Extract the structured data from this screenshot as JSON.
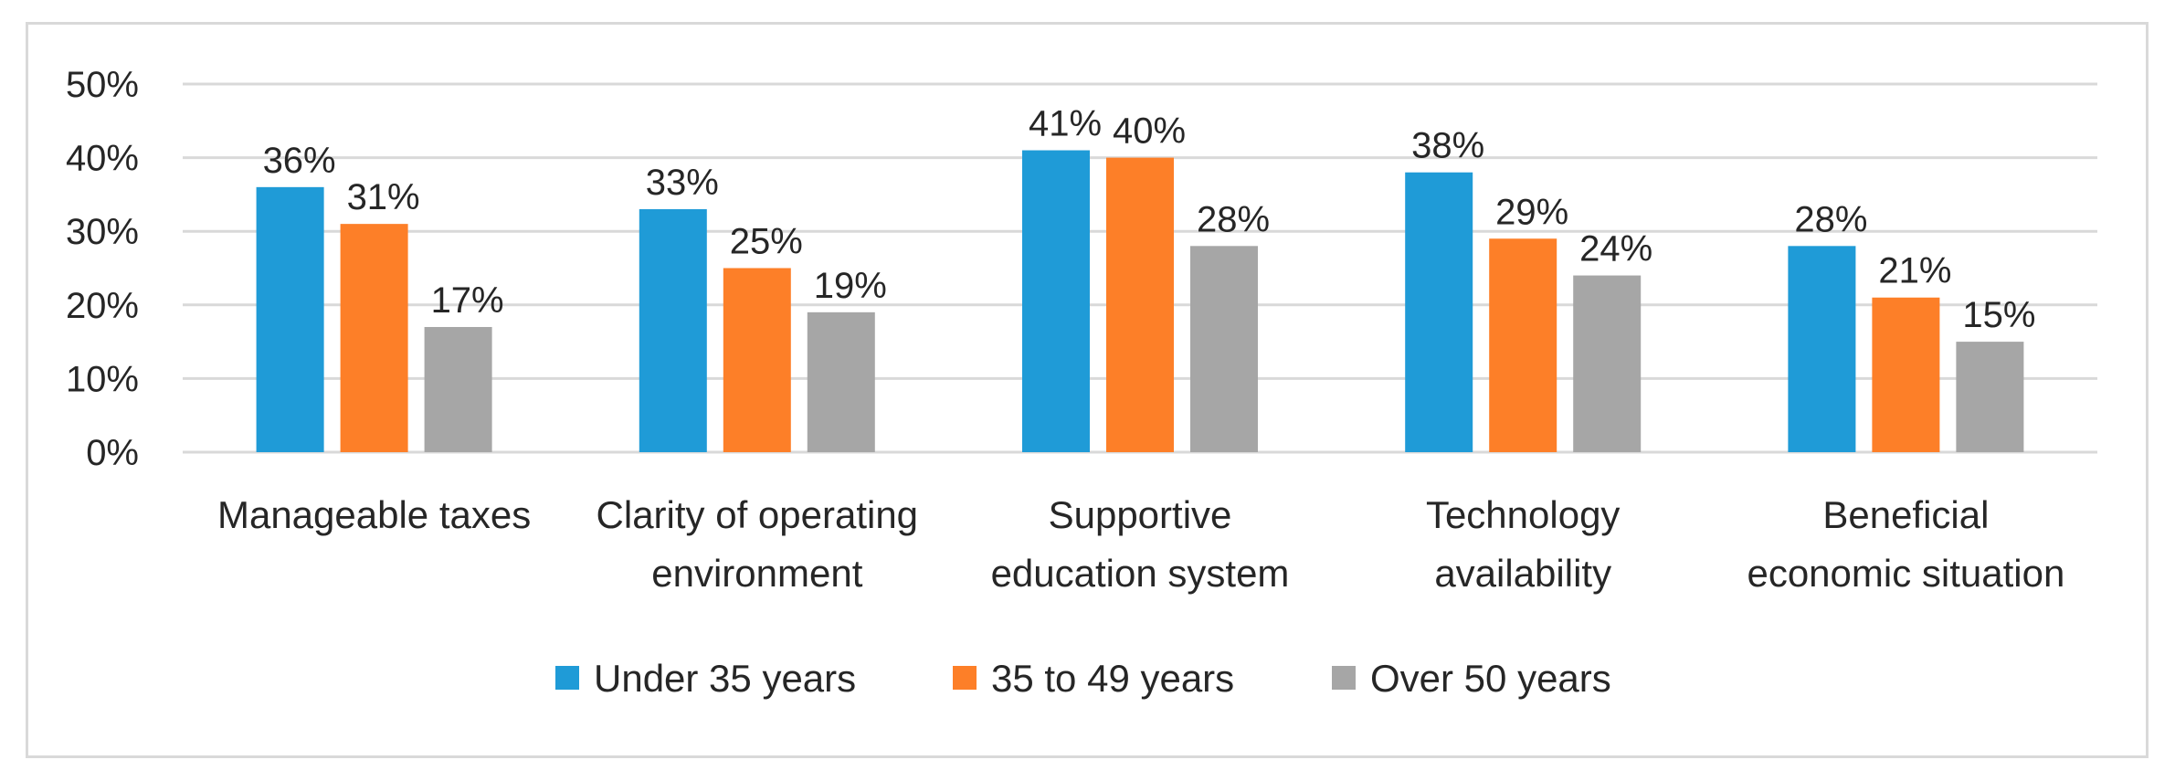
{
  "chart_data": {
    "type": "bar",
    "title": "",
    "xlabel": "",
    "ylabel": "",
    "ylim": [
      0,
      50
    ],
    "yticks": [
      "0%",
      "10%",
      "20%",
      "30%",
      "40%",
      "50%"
    ],
    "grid": true,
    "legend_position": "bottom",
    "categories": [
      [
        "Manageable taxes"
      ],
      [
        "Clarity of operating",
        "environment"
      ],
      [
        "Supportive",
        "education system"
      ],
      [
        "Technology",
        "availability"
      ],
      [
        "Beneficial",
        "economic situation"
      ]
    ],
    "series": [
      {
        "name": "Under 35 years",
        "color": "#1f9bd7",
        "values": [
          36,
          33,
          41,
          38,
          28
        ],
        "labels": [
          "36%",
          "33%",
          "41%",
          "38%",
          "28%"
        ]
      },
      {
        "name": "35 to 49 years",
        "color": "#fd7f28",
        "values": [
          31,
          25,
          40,
          29,
          21
        ],
        "labels": [
          "31%",
          "25%",
          "40%",
          "29%",
          "21%"
        ]
      },
      {
        "name": "Over 50 years",
        "color": "#a6a6a6",
        "values": [
          17,
          19,
          28,
          24,
          15
        ],
        "labels": [
          "17%",
          "19%",
          "28%",
          "24%",
          "15%"
        ]
      }
    ]
  }
}
